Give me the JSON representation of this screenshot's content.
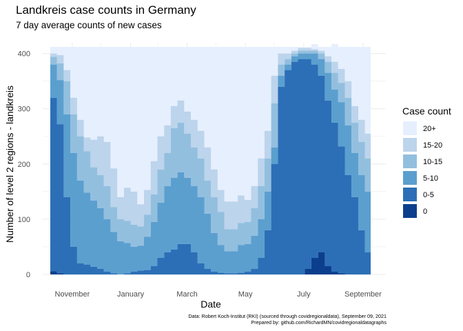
{
  "title": "Landkreis case counts in Germany",
  "subtitle": "7 day average counts of new cases",
  "caption": {
    "line1": "Data: Robert Koch-Institut (RKI) (sourced through covidregionaldata), September 09, 2021",
    "line2": "Prepared by: github.com/RichardMN/covidregionaldatagraphs"
  },
  "colors": {
    "c0": "#0b3f8d",
    "c0_5": "#2c6fb7",
    "c5_10": "#5b9fcf",
    "c10_15": "#93bfdf",
    "c15_20": "#bcd4ec",
    "c20p": "#e6effd",
    "grid": "#ebebeb"
  },
  "chart_data": {
    "type": "area",
    "stacked": true,
    "xlabel": "Date",
    "ylabel": "Number of level 2 regions - landkreis",
    "ylim": [
      0,
      412
    ],
    "yticks": [
      0,
      100,
      200,
      300,
      400
    ],
    "xlim": [
      "2020-10-09",
      "2021-09-09"
    ],
    "xticks": [
      {
        "date": "2020-11-01",
        "label": "November"
      },
      {
        "date": "2021-01-01",
        "label": "January"
      },
      {
        "date": "2021-03-01",
        "label": "March"
      },
      {
        "date": "2021-05-01",
        "label": "May"
      },
      {
        "date": "2021-07-01",
        "label": "July"
      },
      {
        "date": "2021-09-01",
        "label": "September"
      }
    ],
    "legend_title": "Case count",
    "legend_position": "right",
    "legend": [
      "20+",
      "15-20",
      "10-15",
      "5-10",
      "0-5",
      "0"
    ],
    "x": [
      "2020-10-09",
      "2020-10-16",
      "2020-10-23",
      "2020-10-30",
      "2020-11-06",
      "2020-11-13",
      "2020-11-20",
      "2020-11-27",
      "2020-12-04",
      "2020-12-11",
      "2020-12-18",
      "2020-12-25",
      "2021-01-01",
      "2021-01-08",
      "2021-01-15",
      "2021-01-22",
      "2021-01-29",
      "2021-02-05",
      "2021-02-12",
      "2021-02-19",
      "2021-02-26",
      "2021-03-05",
      "2021-03-12",
      "2021-03-19",
      "2021-03-26",
      "2021-04-02",
      "2021-04-09",
      "2021-04-16",
      "2021-04-23",
      "2021-04-30",
      "2021-05-07",
      "2021-05-14",
      "2021-05-21",
      "2021-05-28",
      "2021-06-04",
      "2021-06-11",
      "2021-06-18",
      "2021-06-25",
      "2021-07-02",
      "2021-07-09",
      "2021-07-16",
      "2021-07-23",
      "2021-07-30",
      "2021-08-06",
      "2021-08-13",
      "2021-08-20",
      "2021-08-27",
      "2021-09-03",
      "2021-09-09"
    ],
    "series": [
      {
        "name": "0",
        "values": [
          6,
          2,
          0,
          0,
          0,
          0,
          0,
          0,
          0,
          0,
          0,
          0,
          0,
          0,
          0,
          0,
          0,
          0,
          0,
          0,
          0,
          0,
          0,
          0,
          0,
          0,
          0,
          0,
          0,
          0,
          0,
          0,
          0,
          0,
          0,
          0,
          0,
          0,
          10,
          30,
          40,
          15,
          5,
          2,
          0,
          0,
          0,
          0,
          0
        ]
      },
      {
        "name": "0-5",
        "values": [
          314,
          270,
          140,
          50,
          20,
          18,
          14,
          10,
          5,
          2,
          0,
          2,
          5,
          7,
          8,
          15,
          30,
          40,
          45,
          55,
          55,
          40,
          20,
          10,
          5,
          3,
          2,
          2,
          3,
          5,
          10,
          30,
          80,
          200,
          340,
          370,
          385,
          390,
          380,
          350,
          320,
          300,
          270,
          230,
          180,
          140,
          80,
          40,
          40
        ]
      },
      {
        "name": "5-10",
        "values": [
          60,
          80,
          150,
          170,
          150,
          130,
          120,
          110,
          95,
          75,
          60,
          55,
          45,
          45,
          60,
          80,
          100,
          120,
          130,
          130,
          120,
          120,
          120,
          100,
          70,
          50,
          40,
          40,
          50,
          50,
          60,
          70,
          70,
          30,
          20,
          10,
          10,
          10,
          10,
          20,
          30,
          50,
          60,
          80,
          90,
          80,
          100,
          110,
          120
        ]
      },
      {
        "name": "10-15",
        "values": [
          14,
          30,
          60,
          70,
          80,
          75,
          60,
          60,
          60,
          45,
          40,
          40,
          40,
          35,
          40,
          50,
          60,
          60,
          90,
          90,
          80,
          70,
          70,
          60,
          65,
          60,
          40,
          40,
          40,
          40,
          50,
          60,
          60,
          80,
          20,
          10,
          5,
          5,
          5,
          5,
          10,
          20,
          30,
          35,
          50,
          55,
          60,
          60,
          70
        ]
      },
      {
        "name": "15-20",
        "values": [
          6,
          15,
          20,
          30,
          30,
          25,
          50,
          70,
          80,
          70,
          40,
          60,
          60,
          40,
          45,
          60,
          60,
          50,
          40,
          40,
          40,
          50,
          50,
          60,
          50,
          40,
          50,
          50,
          50,
          40,
          40,
          50,
          50,
          50,
          20,
          10,
          5,
          5,
          5,
          3,
          5,
          10,
          20,
          25,
          30,
          30,
          40,
          45,
          10
        ]
      },
      {
        "name": "20+",
        "values": [
          12,
          15,
          42,
          92,
          132,
          164,
          168,
          162,
          172,
          220,
          272,
          255,
          262,
          285,
          259,
          207,
          162,
          142,
          107,
          97,
          117,
          132,
          152,
          182,
          222,
          259,
          280,
          280,
          269,
          277,
          252,
          202,
          152,
          52,
          12,
          12,
          7,
          2,
          2,
          9,
          7,
          17,
          32,
          40,
          62,
          107,
          132,
          157,
          172
        ]
      }
    ]
  }
}
